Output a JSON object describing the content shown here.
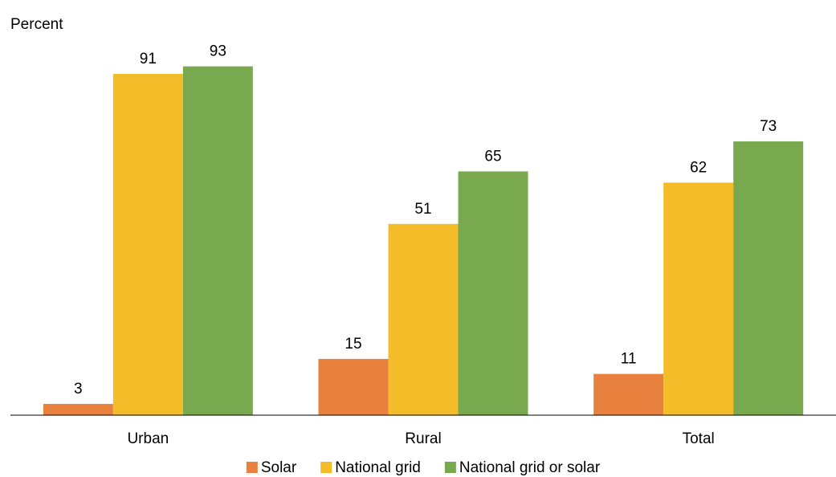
{
  "chart_data": {
    "type": "bar",
    "y_axis_label": "Percent",
    "categories": [
      "Urban",
      "Rural",
      "Total"
    ],
    "series": [
      {
        "name": "Solar",
        "color": "#e8803e",
        "values": [
          3,
          15,
          11
        ]
      },
      {
        "name": "National grid",
        "color": "#f5bc2a",
        "values": [
          91,
          51,
          62
        ]
      },
      {
        "name": "National grid or solar",
        "color": "#79a94e",
        "values": [
          93,
          65,
          73
        ]
      }
    ],
    "ylim": [
      0,
      100
    ]
  }
}
